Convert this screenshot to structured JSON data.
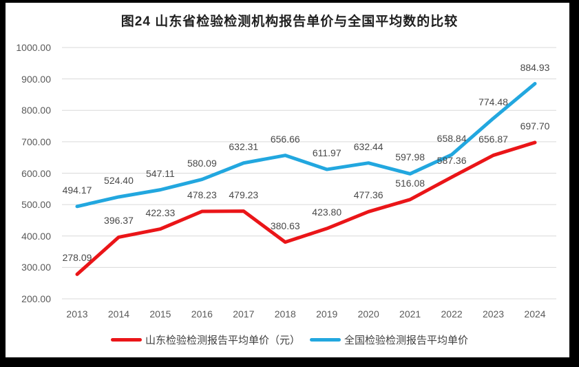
{
  "title": "图24  山东省检验检测机构报告单价与全国平均数的比较",
  "chart_data": {
    "type": "line",
    "x": [
      "2013",
      "2014",
      "2015",
      "2016",
      "2017",
      "2018",
      "2019",
      "2020",
      "2021",
      "2022",
      "2023",
      "2024"
    ],
    "series": [
      {
        "slug": "shandong",
        "name": "山东检验检测报告平均单价（元）",
        "color": "#ea1518",
        "values": [
          278.09,
          396.37,
          422.33,
          478.23,
          479.23,
          380.63,
          423.8,
          477.36,
          516.08,
          587.36,
          656.87,
          697.7
        ]
      },
      {
        "slug": "national",
        "name": "全国检验检测报告平均单价",
        "color": "#22a7df",
        "values": [
          494.17,
          524.4,
          547.11,
          580.09,
          632.31,
          656.66,
          611.97,
          632.44,
          597.98,
          658.84,
          774.48,
          884.93
        ]
      }
    ],
    "ylim": [
      200,
      1000
    ],
    "ytick_step": 100,
    "y_tick_labels": [
      "1000.00",
      "900.00",
      "800.00",
      "700.00",
      "600.00",
      "500.00",
      "400.00",
      "300.00",
      "200.00"
    ],
    "grid": "horizontal-only",
    "gridline_color": "#d9d9d9",
    "legend_position": "bottom",
    "data_labels": "all-points, 2 decimals, above point"
  }
}
